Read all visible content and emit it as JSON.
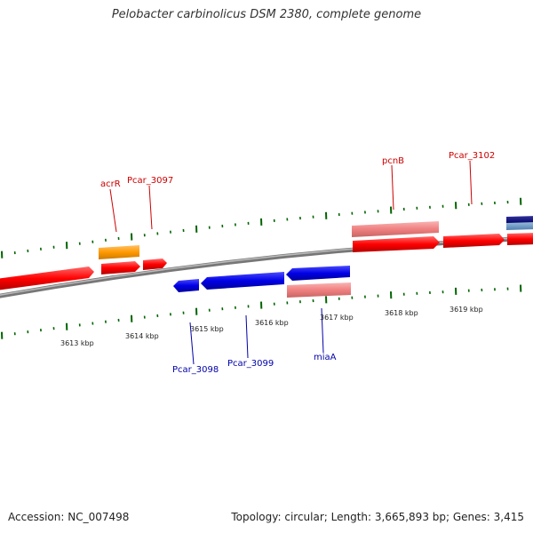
{
  "title": "Pelobacter carbinolicus DSM 2380, complete genome",
  "footer": {
    "accession": "Accession: NC_007498",
    "summary": "Topology: circular; Length: 3,665,893 bp; Genes: 3,415"
  },
  "scale_labels": [
    "3613 kbp",
    "3614 kbp",
    "3615 kbp",
    "3616 kbp",
    "3617 kbp",
    "3618 kbp",
    "3619 kbp"
  ],
  "gene_labels": {
    "forward": [
      "acrR",
      "Pcar_3097",
      "pcnB",
      "Pcar_3102"
    ],
    "reverse": [
      "Pcar_3098",
      "Pcar_3099",
      "miaA"
    ]
  },
  "colors": {
    "forward_gene": "#ff0000",
    "forward_gene_light": "#f28c8c",
    "forward_label": "#cc0000",
    "reverse_gene": "#0000e6",
    "reverse_label": "#0000aa",
    "highlight_gene": "#ff9900",
    "navy_gene": "#000080",
    "steelblue_gene": "#6699cc",
    "tick": "#006400",
    "backbone": "#888888"
  }
}
